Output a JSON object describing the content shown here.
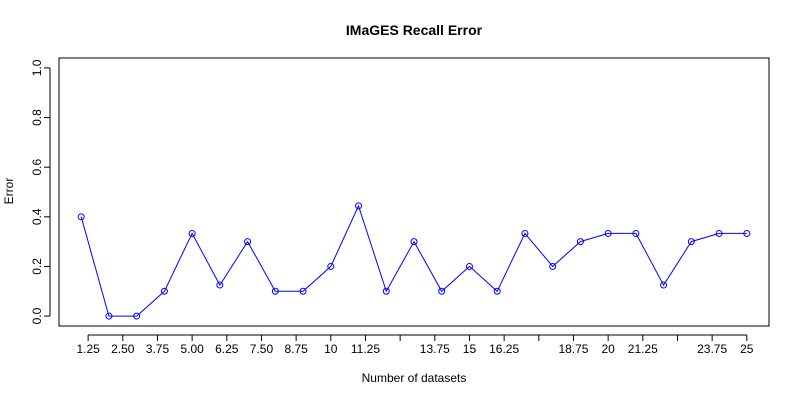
{
  "chart_data": {
    "type": "line",
    "title": "IMaGES Recall Error",
    "xlabel": "Number of datasets",
    "ylabel": "Error",
    "xlim": [
      0.2,
      25.8
    ],
    "ylim": [
      -0.04,
      1.04
    ],
    "x_ticks": [
      1.25,
      2.5,
      3.75,
      5.0,
      6.25,
      7.5,
      8.75,
      10,
      11.25,
      12.5,
      13.75,
      15,
      16.25,
      17.5,
      18.75,
      20,
      21.25,
      22.5,
      23.75,
      25
    ],
    "x_tick_labels": [
      "1.25",
      "2.50",
      "3.75",
      "5.00",
      "6.25",
      "7.50",
      "8.75",
      "10",
      "11.25",
      "",
      "13.75",
      "15",
      "16.25",
      "",
      "18.75",
      "20",
      "21.25",
      "",
      "23.75",
      "25"
    ],
    "y_ticks": [
      0.0,
      0.2,
      0.4,
      0.6,
      0.8,
      1.0
    ],
    "y_tick_labels": [
      "0.0",
      "0.2",
      "0.4",
      "0.6",
      "0.8",
      "1.0"
    ],
    "grid": false,
    "colors": {
      "series": "#0000ff",
      "axis": "#000000"
    },
    "series": [
      {
        "marker": "open-circle",
        "x": [
          1,
          2,
          3,
          4,
          5,
          6,
          7,
          8,
          9,
          10,
          11,
          12,
          13,
          14,
          15,
          16,
          17,
          18,
          19,
          20,
          21,
          22,
          23,
          24,
          25
        ],
        "values": [
          0.4,
          0.0,
          0.0,
          0.1,
          0.333,
          0.125,
          0.3,
          0.1,
          0.1,
          0.2,
          0.444,
          0.1,
          0.3,
          0.1,
          0.2,
          0.1,
          0.333,
          0.2,
          0.3,
          0.333,
          0.333,
          0.125,
          0.3,
          0.333,
          0.333
        ]
      }
    ]
  }
}
